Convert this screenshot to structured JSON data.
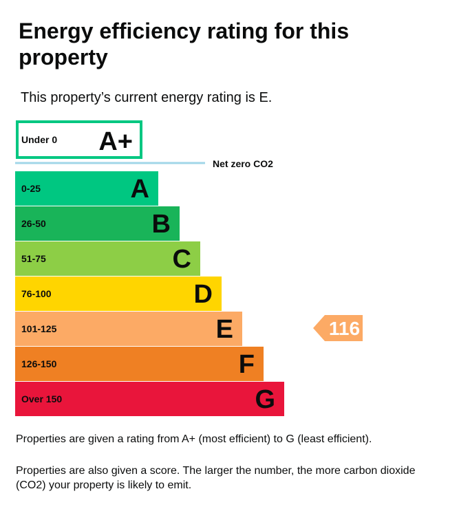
{
  "page": {
    "title": "Energy efficiency rating for this property",
    "intro": "This property’s current energy rating is E.",
    "note_1": "Properties are given a rating from A+ (most efficient) to G (least efficient).",
    "note_2": "Properties are also given a score. The larger the number, the more carbon dioxide (CO2) your property is likely to emit."
  },
  "chart_data": {
    "type": "bar",
    "top_band": {
      "range": "Under 0",
      "letter": "A+",
      "border_color": "#00c781"
    },
    "net_zero_label": "Net zero CO2",
    "net_zero_line_color": "#a0d6e8",
    "bands": [
      {
        "range": "0-25",
        "letter": "A",
        "color": "#00c781"
      },
      {
        "range": "26-50",
        "letter": "B",
        "color": "#19b459"
      },
      {
        "range": "51-75",
        "letter": "C",
        "color": "#8dce46"
      },
      {
        "range": "76-100",
        "letter": "D",
        "color": "#ffd500"
      },
      {
        "range": "101-125",
        "letter": "E",
        "color": "#fcaa65"
      },
      {
        "range": "126-150",
        "letter": "F",
        "color": "#ef8023"
      },
      {
        "range": "Over 150",
        "letter": "G",
        "color": "#e9153b"
      }
    ],
    "current": {
      "score": 116,
      "band": "E",
      "color": "#fcaa65",
      "text_color": "#ffffff"
    }
  }
}
